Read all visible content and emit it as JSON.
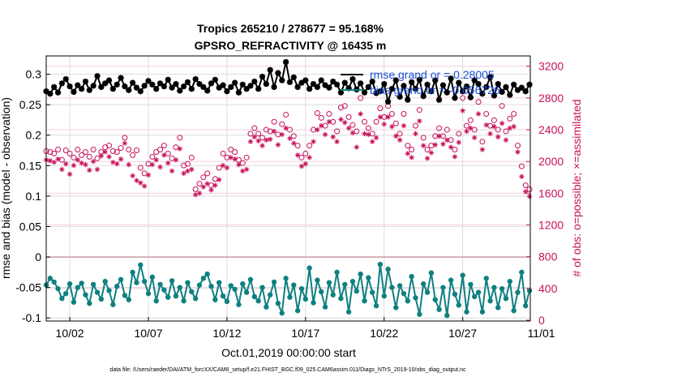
{
  "chart_data": {
    "type": "line",
    "title": "Tropics 265210 / 278677 = 95.168%",
    "subtitle": "GPSRO_REFRACTIVITY @ 16435 m",
    "xlabel": "Oct.01,2019 00:00:00 start",
    "ylabel": "rmse and bias (model - observation)",
    "y2label": "# of obs: o=possible; ×=assimilated",
    "footer": "data file: /Users/raeder/DAI/ATM_forcXX/CAM6_setup/f.e21.FHIST_BGC.f09_025.CAM6assim.011/Diags_NTrS_2019-10/obs_diag_output.nc",
    "xlim": [
      0.5,
      31.3
    ],
    "ylim": [
      -0.105,
      0.33
    ],
    "y2lim": [
      -10,
      3330
    ],
    "x_ticks": [
      2,
      7,
      12,
      17,
      22,
      27,
      32
    ],
    "x_tick_labels": [
      "10/02",
      "10/07",
      "10/12",
      "10/17",
      "10/22",
      "10/27",
      "11/01"
    ],
    "y_ticks": [
      -0.1,
      -0.05,
      0,
      0.05,
      0.1,
      0.15,
      0.2,
      0.25,
      0.3
    ],
    "y_tick_labels": [
      "-0.1",
      "-0.05",
      "0",
      "0.05",
      "0.1",
      "0.15",
      "0.2",
      "0.25",
      "0.3"
    ],
    "y2_ticks": [
      0,
      400,
      800,
      1200,
      1600,
      2000,
      2400,
      2800,
      3200
    ],
    "y2_tick_labels": [
      "0",
      "400",
      "800",
      "1200",
      "1600",
      "2000",
      "2400",
      "2800",
      "3200"
    ],
    "grid": true,
    "legend": [
      {
        "label": "rmse grand or = 0.28005",
        "color": "#000000"
      },
      {
        "label": "bias grand or = -0.056726",
        "color": "#0f8080"
      }
    ],
    "series": [
      {
        "name": "rmse",
        "color": "#000000",
        "x": [
          0.5,
          0.75,
          1,
          1.25,
          1.5,
          1.75,
          2,
          2.25,
          2.5,
          2.75,
          3,
          3.25,
          3.5,
          3.75,
          4,
          4.25,
          4.5,
          4.75,
          5,
          5.25,
          5.5,
          5.75,
          6,
          6.25,
          6.5,
          6.75,
          7,
          7.25,
          7.5,
          7.75,
          8,
          8.25,
          8.5,
          8.75,
          9,
          9.25,
          9.5,
          9.75,
          10,
          10.25,
          10.5,
          10.75,
          11,
          11.25,
          11.5,
          11.75,
          12,
          12.25,
          12.5,
          12.75,
          13,
          13.25,
          13.5,
          13.75,
          14,
          14.25,
          14.5,
          14.75,
          15,
          15.25,
          15.5,
          15.75,
          16,
          16.25,
          16.5,
          16.75,
          17,
          17.25,
          17.5,
          17.75,
          18,
          18.25,
          18.5,
          18.75,
          19,
          19.25,
          19.5,
          19.75,
          20,
          20.25,
          20.5,
          20.75,
          21,
          21.25,
          21.5,
          21.75,
          22,
          22.25,
          22.5,
          22.75,
          23,
          23.25,
          23.5,
          23.75,
          24,
          24.25,
          24.5,
          24.75,
          25,
          25.25,
          25.5,
          25.75,
          26,
          26.25,
          26.5,
          26.75,
          27,
          27.25,
          27.5,
          27.75,
          28,
          28.25,
          28.5,
          28.75,
          29,
          29.25,
          29.5,
          29.75,
          30,
          30.25,
          30.5,
          30.75,
          31,
          31.25
        ],
        "values": [
          0.272,
          0.268,
          0.279,
          0.27,
          0.285,
          0.292,
          0.28,
          0.271,
          0.282,
          0.276,
          0.288,
          0.274,
          0.281,
          0.297,
          0.279,
          0.285,
          0.29,
          0.276,
          0.283,
          0.294,
          0.28,
          0.274,
          0.286,
          0.278,
          0.272,
          0.281,
          0.289,
          0.283,
          0.276,
          0.285,
          0.28,
          0.291,
          0.278,
          0.284,
          0.273,
          0.28,
          0.287,
          0.276,
          0.292,
          0.284,
          0.279,
          0.273,
          0.285,
          0.291,
          0.278,
          0.282,
          0.272,
          0.279,
          0.286,
          0.27,
          0.283,
          0.276,
          0.281,
          0.288,
          0.276,
          0.296,
          0.284,
          0.307,
          0.279,
          0.302,
          0.29,
          0.32,
          0.287,
          0.295,
          0.279,
          0.286,
          0.29,
          0.276,
          0.284,
          0.279,
          0.29,
          0.282,
          0.278,
          0.288,
          0.283,
          0.27,
          0.286,
          0.277,
          0.292,
          0.275,
          0.285,
          0.27,
          0.279,
          0.288,
          0.269,
          0.272,
          0.284,
          0.255,
          0.276,
          0.29,
          0.263,
          0.281,
          0.258,
          0.287,
          0.276,
          0.291,
          0.264,
          0.283,
          0.272,
          0.29,
          0.258,
          0.282,
          0.27,
          0.293,
          0.261,
          0.286,
          0.272,
          0.28,
          0.262,
          0.29,
          0.284,
          0.268,
          0.279,
          0.295,
          0.265,
          0.284,
          0.271,
          0.279,
          0.266,
          0.283,
          0.274,
          0.278,
          0.272,
          0.283
        ]
      },
      {
        "name": "bias",
        "color": "#0f8080",
        "x": [
          0.5,
          0.75,
          1,
          1.25,
          1.5,
          1.75,
          2,
          2.25,
          2.5,
          2.75,
          3,
          3.25,
          3.5,
          3.75,
          4,
          4.25,
          4.5,
          4.75,
          5,
          5.25,
          5.5,
          5.75,
          6,
          6.25,
          6.5,
          6.75,
          7,
          7.25,
          7.5,
          7.75,
          8,
          8.25,
          8.5,
          8.75,
          9,
          9.25,
          9.5,
          9.75,
          10,
          10.25,
          10.5,
          10.75,
          11,
          11.25,
          11.5,
          11.75,
          12,
          12.25,
          12.5,
          12.75,
          13,
          13.25,
          13.5,
          13.75,
          14,
          14.25,
          14.5,
          14.75,
          15,
          15.25,
          15.5,
          15.75,
          16,
          16.25,
          16.5,
          16.75,
          17,
          17.25,
          17.5,
          17.75,
          18,
          18.25,
          18.5,
          18.75,
          19,
          19.25,
          19.5,
          19.75,
          20,
          20.25,
          20.5,
          20.75,
          21,
          21.25,
          21.5,
          21.75,
          22,
          22.25,
          22.5,
          22.75,
          23,
          23.25,
          23.5,
          23.75,
          24,
          24.25,
          24.5,
          24.75,
          25,
          25.25,
          25.5,
          25.75,
          26,
          26.25,
          26.5,
          26.75,
          27,
          27.25,
          27.5,
          27.75,
          28,
          28.25,
          28.5,
          28.75,
          29,
          29.25,
          29.5,
          29.75,
          30,
          30.25,
          30.5,
          30.75,
          31,
          31.25
        ],
        "values": [
          -0.046,
          -0.035,
          -0.041,
          -0.052,
          -0.068,
          -0.06,
          -0.044,
          -0.074,
          -0.05,
          -0.043,
          -0.062,
          -0.076,
          -0.045,
          -0.058,
          -0.069,
          -0.04,
          -0.055,
          -0.078,
          -0.048,
          -0.037,
          -0.063,
          -0.07,
          -0.025,
          -0.042,
          -0.013,
          -0.04,
          -0.06,
          -0.033,
          -0.072,
          -0.045,
          -0.054,
          -0.066,
          -0.039,
          -0.064,
          -0.05,
          -0.072,
          -0.042,
          -0.057,
          -0.068,
          -0.046,
          -0.035,
          -0.028,
          -0.048,
          -0.07,
          -0.042,
          -0.064,
          -0.073,
          -0.047,
          -0.053,
          -0.078,
          -0.044,
          -0.058,
          -0.037,
          -0.065,
          -0.072,
          -0.05,
          -0.082,
          -0.062,
          -0.041,
          -0.076,
          -0.092,
          -0.035,
          -0.066,
          -0.046,
          -0.088,
          -0.052,
          -0.069,
          -0.018,
          -0.075,
          -0.038,
          -0.057,
          -0.082,
          -0.042,
          -0.062,
          -0.025,
          -0.068,
          -0.045,
          -0.09,
          -0.04,
          -0.056,
          -0.028,
          -0.072,
          -0.034,
          -0.058,
          -0.08,
          -0.012,
          -0.064,
          -0.02,
          -0.05,
          -0.083,
          -0.047,
          -0.06,
          -0.072,
          -0.032,
          -0.067,
          -0.094,
          -0.044,
          -0.058,
          -0.026,
          -0.07,
          -0.086,
          -0.05,
          -0.096,
          -0.038,
          -0.061,
          -0.079,
          -0.03,
          -0.09,
          -0.045,
          -0.065,
          -0.058,
          -0.09,
          -0.035,
          -0.072,
          -0.05,
          -0.083,
          -0.052,
          -0.068,
          -0.04,
          -0.088,
          -0.058,
          -0.025,
          -0.08,
          -0.055
        ]
      },
      {
        "name": "obs possible",
        "color": "#c8105c",
        "marker": "o",
        "axis": "right",
        "x": [
          0.5,
          0.75,
          1,
          1.25,
          1.5,
          1.75,
          2,
          2.25,
          2.5,
          2.75,
          3,
          3.25,
          3.5,
          3.75,
          4,
          4.25,
          4.5,
          4.75,
          5,
          5.25,
          5.5,
          5.75,
          6,
          6.25,
          6.5,
          6.75,
          7,
          7.25,
          7.5,
          7.75,
          8,
          8.25,
          8.5,
          8.75,
          9,
          9.25,
          9.5,
          9.75,
          10,
          10.25,
          10.5,
          10.75,
          11,
          11.25,
          11.5,
          11.75,
          12,
          12.25,
          12.5,
          12.75,
          13,
          13.25,
          13.5,
          13.75,
          14,
          14.25,
          14.5,
          14.75,
          15,
          15.25,
          15.5,
          15.75,
          16,
          16.25,
          16.5,
          16.75,
          17,
          17.25,
          17.5,
          17.75,
          18,
          18.25,
          18.5,
          18.75,
          19,
          19.25,
          19.5,
          19.75,
          20,
          20.25,
          20.5,
          20.75,
          21,
          21.25,
          21.5,
          21.75,
          22,
          22.25,
          22.5,
          22.75,
          23,
          23.25,
          23.5,
          23.75,
          24,
          24.25,
          24.5,
          24.75,
          25,
          25.25,
          25.5,
          25.75,
          26,
          26.25,
          26.5,
          26.75,
          27,
          27.25,
          27.5,
          27.75,
          28,
          28.25,
          28.5,
          28.75,
          29,
          29.25,
          29.5,
          29.75,
          30,
          30.25,
          30.5,
          30.75,
          31,
          31.25
        ],
        "values": [
          2130,
          2120,
          2100,
          2150,
          2020,
          2140,
          2100,
          2050,
          2150,
          2080,
          2120,
          2060,
          2150,
          2040,
          2120,
          2180,
          2200,
          2130,
          2120,
          2170,
          2300,
          2150,
          2080,
          2140,
          1920,
          1850,
          1970,
          2060,
          2120,
          2150,
          2200,
          2100,
          2040,
          2180,
          2300,
          1950,
          1970,
          2050,
          1650,
          1720,
          1800,
          1850,
          1700,
          1780,
          1920,
          2100,
          2050,
          2150,
          2120,
          2020,
          1980,
          2050,
          2350,
          2420,
          2350,
          2300,
          2400,
          2380,
          2500,
          2340,
          2470,
          2590,
          2400,
          2320,
          2200,
          2050,
          2100,
          2200,
          2400,
          2610,
          2550,
          2450,
          2600,
          2500,
          2380,
          2680,
          2700,
          2560,
          2460,
          2380,
          2800,
          2500,
          2420,
          2350,
          2500,
          2670,
          2560,
          2700,
          2600,
          2480,
          2350,
          2600,
          2200,
          2150,
          2450,
          2650,
          2300,
          2150,
          2200,
          2320,
          2420,
          2320,
          2400,
          2270,
          2150,
          2350,
          2800,
          2450,
          2520,
          2400,
          2750,
          2250,
          2600,
          2450,
          2520,
          2400,
          2700,
          2380,
          2540,
          2600,
          2200,
          1940,
          1700,
          1650
        ]
      },
      {
        "name": "obs assimilated",
        "color": "#c8105c",
        "marker": "*",
        "axis": "right",
        "x": [
          0.5,
          0.75,
          1,
          1.25,
          1.5,
          1.75,
          2,
          2.25,
          2.5,
          2.75,
          3,
          3.25,
          3.5,
          3.75,
          4,
          4.25,
          4.5,
          4.75,
          5,
          5.25,
          5.5,
          5.75,
          6,
          6.25,
          6.5,
          6.75,
          7,
          7.25,
          7.5,
          7.75,
          8,
          8.25,
          8.5,
          8.75,
          9,
          9.25,
          9.5,
          9.75,
          10,
          10.25,
          10.5,
          10.75,
          11,
          11.25,
          11.5,
          11.75,
          12,
          12.25,
          12.5,
          12.75,
          13,
          13.25,
          13.5,
          13.75,
          14,
          14.25,
          14.5,
          14.75,
          15,
          15.25,
          15.5,
          15.75,
          16,
          16.25,
          16.5,
          16.75,
          17,
          17.25,
          17.5,
          17.75,
          18,
          18.25,
          18.5,
          18.75,
          19,
          19.25,
          19.5,
          19.75,
          20,
          20.25,
          20.5,
          20.75,
          21,
          21.25,
          21.5,
          21.75,
          22,
          22.25,
          22.5,
          22.75,
          23,
          23.25,
          23.5,
          23.75,
          24,
          24.25,
          24.5,
          24.75,
          25,
          25.25,
          25.5,
          25.75,
          26,
          26.25,
          26.5,
          26.75,
          27,
          27.25,
          27.5,
          27.75,
          28,
          28.25,
          28.5,
          28.75,
          29,
          29.25,
          29.5,
          29.75,
          30,
          30.25,
          30.5,
          30.75,
          31,
          31.25
        ],
        "values": [
          2020,
          2010,
          1990,
          2030,
          1900,
          1970,
          1840,
          1950,
          2020,
          1980,
          1960,
          1890,
          2000,
          1900,
          2070,
          2120,
          2060,
          1990,
          1970,
          2030,
          2230,
          1960,
          1820,
          1760,
          1730,
          1690,
          1830,
          1960,
          2020,
          1930,
          2080,
          1980,
          1880,
          2020,
          2160,
          1850,
          1880,
          1900,
          1580,
          1600,
          1680,
          1720,
          1640,
          1700,
          1770,
          1950,
          1920,
          2050,
          2030,
          1960,
          1880,
          1900,
          2250,
          2310,
          2260,
          2200,
          2270,
          2280,
          2380,
          2210,
          2340,
          2420,
          2290,
          2230,
          2080,
          1940,
          1970,
          2050,
          2250,
          2400,
          2450,
          2340,
          2500,
          2310,
          2250,
          2530,
          2490,
          2420,
          2360,
          2180,
          2600,
          2350,
          2340,
          2250,
          2300,
          2560,
          2470,
          2560,
          2440,
          2320,
          2270,
          2450,
          2100,
          2050,
          2350,
          2510,
          2200,
          2040,
          2110,
          2210,
          2320,
          2220,
          2270,
          2180,
          2060,
          2240,
          2640,
          2380,
          2420,
          2300,
          2600,
          2150,
          2460,
          2350,
          2440,
          2310,
          2480,
          2270,
          2420,
          2440,
          2120,
          1810,
          1620,
          1560
        ]
      }
    ]
  }
}
